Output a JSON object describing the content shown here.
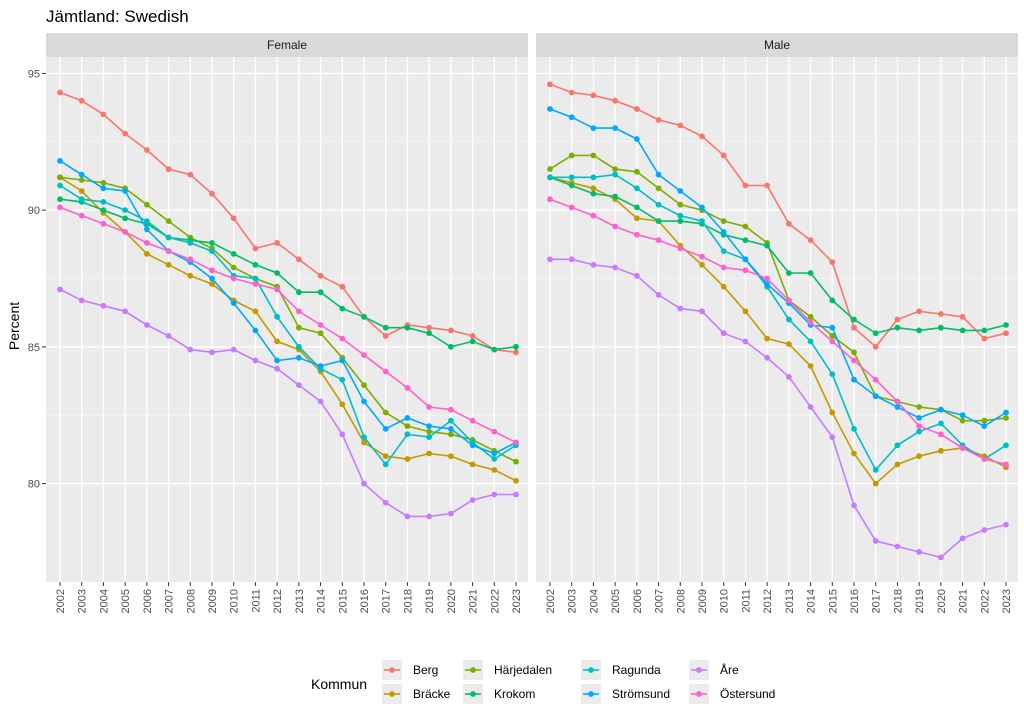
{
  "chart_data": {
    "type": "line",
    "title": "Jämtland: Swedish",
    "xlabel": "",
    "ylabel": "Percent",
    "x": [
      2002,
      2003,
      2004,
      2005,
      2006,
      2007,
      2008,
      2009,
      2010,
      2011,
      2012,
      2013,
      2014,
      2015,
      2016,
      2017,
      2018,
      2019,
      2020,
      2021,
      2022,
      2023
    ],
    "x_tick_labels": [
      "2002",
      "2003",
      "2004",
      "2005",
      "2006",
      "2007",
      "2008",
      "2009",
      "2010",
      "2011",
      "2012",
      "2013",
      "2014",
      "2015",
      "2016",
      "2017",
      "2018",
      "2019",
      "2020",
      "2021",
      "2022",
      "2023"
    ],
    "y_ticks": [
      80,
      85,
      90,
      95
    ],
    "y_tick_labels": [
      "80",
      "85",
      "90",
      "95"
    ],
    "ylim": [
      76.4,
      95.6
    ],
    "grid": true,
    "legend": {
      "title": "Kommun",
      "position": "bottom",
      "columns": [
        [
          "Berg",
          "Bräcke"
        ],
        [
          "Härjedalen",
          "Krokom"
        ],
        [
          "Ragunda",
          "Strömsund"
        ],
        [
          "Åre",
          "Östersund"
        ]
      ]
    },
    "series_colors": {
      "Berg": "#F8766D",
      "Bräcke": "#C49A00",
      "Härjedalen": "#7CAE00",
      "Krokom": "#00BE67",
      "Ragunda": "#00BFC4",
      "Strömsund": "#00A9FF",
      "Åre": "#C77CFF",
      "Östersund": "#FF61CC"
    },
    "panels": [
      {
        "label": "Female",
        "series": [
          {
            "name": "Berg",
            "values": [
              94.3,
              94.0,
              93.5,
              92.8,
              92.2,
              91.5,
              91.3,
              90.6,
              89.7,
              88.6,
              88.8,
              88.2,
              87.6,
              87.2,
              86.1,
              85.4,
              85.8,
              85.7,
              85.6,
              85.4,
              84.9,
              84.8
            ]
          },
          {
            "name": "Bräcke",
            "values": [
              91.2,
              90.7,
              89.9,
              89.2,
              88.4,
              88.0,
              87.6,
              87.3,
              86.7,
              86.3,
              85.2,
              84.9,
              84.1,
              82.9,
              81.5,
              81.0,
              80.9,
              81.1,
              81.0,
              80.7,
              80.5,
              80.1
            ]
          },
          {
            "name": "Härjedalen",
            "values": [
              91.2,
              91.1,
              91.0,
              90.8,
              90.2,
              89.6,
              89.0,
              88.6,
              87.9,
              87.5,
              87.2,
              85.7,
              85.5,
              84.6,
              83.6,
              82.6,
              82.1,
              81.9,
              81.8,
              81.6,
              81.2,
              80.8
            ]
          },
          {
            "name": "Krokom",
            "values": [
              90.4,
              90.3,
              90.0,
              89.7,
              89.5,
              89.0,
              88.9,
              88.8,
              88.4,
              88.0,
              87.7,
              87.0,
              87.0,
              86.4,
              86.1,
              85.7,
              85.7,
              85.5,
              85.0,
              85.2,
              84.9,
              85.0
            ]
          },
          {
            "name": "Ragunda",
            "values": [
              90.9,
              90.4,
              90.3,
              90.0,
              89.6,
              89.0,
              88.8,
              88.5,
              87.6,
              87.5,
              86.1,
              85.0,
              84.2,
              83.8,
              81.7,
              80.7,
              81.8,
              81.7,
              82.3,
              81.5,
              80.9,
              81.4
            ]
          },
          {
            "name": "Strömsund",
            "values": [
              91.8,
              91.3,
              90.8,
              90.7,
              89.3,
              88.5,
              88.1,
              87.5,
              86.6,
              85.6,
              84.5,
              84.6,
              84.3,
              84.5,
              83.0,
              82.0,
              82.4,
              82.1,
              82.0,
              81.4,
              81.1,
              81.5
            ]
          },
          {
            "name": "Åre",
            "values": [
              87.1,
              86.7,
              86.5,
              86.3,
              85.8,
              85.4,
              84.9,
              84.8,
              84.9,
              84.5,
              84.2,
              83.6,
              83.0,
              81.8,
              80.0,
              79.3,
              78.8,
              78.8,
              78.9,
              79.4,
              79.6,
              79.6
            ]
          },
          {
            "name": "Östersund",
            "values": [
              90.1,
              89.8,
              89.5,
              89.2,
              88.8,
              88.5,
              88.2,
              87.8,
              87.5,
              87.3,
              87.1,
              86.3,
              85.8,
              85.3,
              84.7,
              84.1,
              83.5,
              82.8,
              82.7,
              82.3,
              81.9,
              81.5
            ]
          }
        ]
      },
      {
        "label": "Male",
        "series": [
          {
            "name": "Berg",
            "values": [
              94.6,
              94.3,
              94.2,
              94.0,
              93.7,
              93.3,
              93.1,
              92.7,
              92.0,
              90.9,
              90.9,
              89.5,
              88.9,
              88.1,
              85.7,
              85.0,
              86.0,
              86.3,
              86.2,
              86.1,
              85.3,
              85.5
            ]
          },
          {
            "name": "Bräcke",
            "values": [
              91.2,
              91.0,
              90.8,
              90.4,
              89.7,
              89.6,
              88.7,
              88.0,
              87.2,
              86.3,
              85.3,
              85.1,
              84.3,
              82.6,
              81.1,
              80.0,
              80.7,
              81.0,
              81.2,
              81.3,
              81.0,
              80.6
            ]
          },
          {
            "name": "Härjedalen",
            "values": [
              91.5,
              92.0,
              92.0,
              91.5,
              91.4,
              90.8,
              90.2,
              90.0,
              89.6,
              89.4,
              88.8,
              86.7,
              86.1,
              85.4,
              84.8,
              83.2,
              83.0,
              82.8,
              82.7,
              82.3,
              82.3,
              82.4
            ]
          },
          {
            "name": "Krokom",
            "values": [
              91.2,
              90.9,
              90.6,
              90.5,
              90.1,
              89.6,
              89.6,
              89.5,
              89.1,
              88.9,
              88.7,
              87.7,
              87.7,
              86.7,
              86.0,
              85.5,
              85.7,
              85.6,
              85.7,
              85.6,
              85.6,
              85.8
            ]
          },
          {
            "name": "Ragunda",
            "values": [
              91.2,
              91.2,
              91.2,
              91.3,
              90.8,
              90.2,
              89.8,
              89.6,
              88.5,
              88.2,
              87.2,
              86.0,
              85.2,
              84.0,
              82.0,
              80.5,
              81.4,
              81.9,
              82.2,
              81.4,
              80.9,
              81.4
            ]
          },
          {
            "name": "Strömsund",
            "values": [
              93.7,
              93.4,
              93.0,
              93.0,
              92.6,
              91.3,
              90.7,
              90.1,
              89.2,
              88.2,
              87.3,
              86.6,
              85.8,
              85.7,
              83.8,
              83.2,
              82.8,
              82.4,
              82.7,
              82.5,
              82.1,
              82.6
            ]
          },
          {
            "name": "Åre",
            "values": [
              88.2,
              88.2,
              88.0,
              87.9,
              87.6,
              86.9,
              86.4,
              86.3,
              85.5,
              85.2,
              84.6,
              83.9,
              82.8,
              81.7,
              79.2,
              77.9,
              77.7,
              77.5,
              77.3,
              78.0,
              78.3,
              78.5
            ]
          },
          {
            "name": "Östersund",
            "values": [
              90.4,
              90.1,
              89.8,
              89.4,
              89.1,
              88.9,
              88.6,
              88.3,
              87.9,
              87.8,
              87.5,
              86.7,
              85.9,
              85.2,
              84.5,
              83.8,
              83.0,
              82.1,
              81.8,
              81.3,
              80.9,
              80.7
            ]
          }
        ]
      }
    ]
  }
}
